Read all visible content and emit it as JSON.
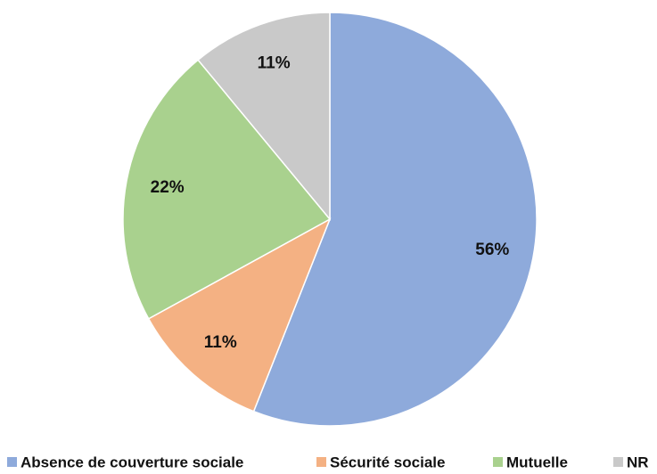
{
  "chart_data": {
    "type": "pie",
    "categories": [
      "Absence de couverture sociale",
      "Sécurité sociale",
      "Mutuelle",
      "NR"
    ],
    "values": [
      56,
      11,
      22,
      11
    ],
    "value_labels": [
      "56%",
      "11%",
      "22%",
      "11%"
    ],
    "colors": [
      "#8eaadb",
      "#f4b183",
      "#a9d18e",
      "#c9c9c9"
    ],
    "legend": "bottom"
  }
}
